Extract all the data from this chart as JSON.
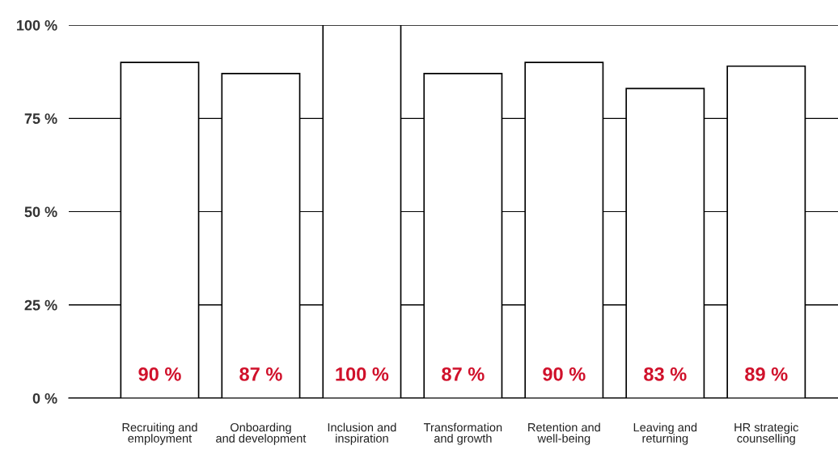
{
  "chart_data": {
    "type": "bar",
    "categories": [
      "Recruiting and\nemployment",
      "Onboarding\nand development",
      "Inclusion and\ninspiration",
      "Transformation\nand growth",
      "Retention and\nwell-being",
      "Leaving and\nreturning",
      "HR strategic\ncounselling"
    ],
    "values": [
      90,
      87,
      100,
      87,
      90,
      83,
      89
    ],
    "color": "#ffffff",
    "value_labels": [
      "90 %",
      "87 %",
      "100 %",
      "87 %",
      "90 %",
      "83 %",
      "89 %"
    ],
    "ylim": [
      0,
      100
    ],
    "yticks": [
      {
        "value": 0,
        "label": "0 %"
      },
      {
        "value": 25,
        "label": "25 %"
      },
      {
        "value": 50,
        "label": "50 %"
      },
      {
        "value": 75,
        "label": "75 %"
      },
      {
        "value": 100,
        "label": "100 %"
      }
    ],
    "grid": "y",
    "legend": false
  }
}
